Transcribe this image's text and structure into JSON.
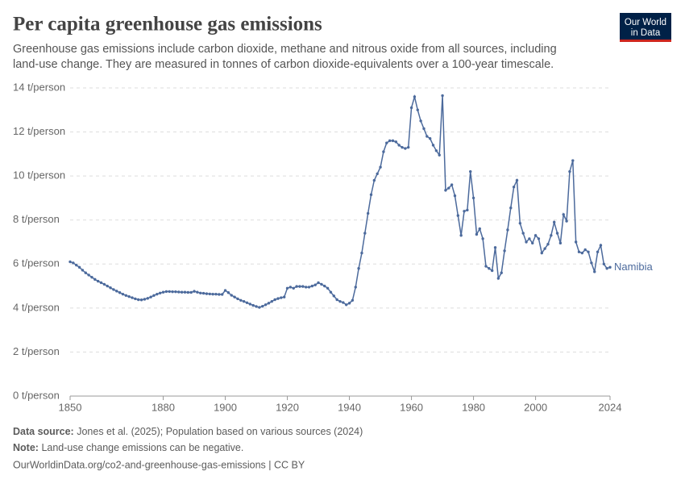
{
  "chart_data": {
    "type": "line",
    "title": "Per capita greenhouse gas emissions",
    "subtitle": [
      "Greenhouse gas emissions include carbon dioxide, methane and nitrous oxide from all sources, including",
      "land-use change. They are measured in tonnes of carbon dioxide-equivalents over a 100-year timescale."
    ],
    "logo": [
      "Our World",
      "in Data"
    ],
    "source_label": "Data source:",
    "source": "Jones et al. (2025); Population based on various sources (2024)",
    "note_label": "Note:",
    "note": "Land-use change emissions can be negative.",
    "url": "OurWorldinData.org/co2-and-greenhouse-gas-emissions | CC BY",
    "xlim": [
      1850,
      2024
    ],
    "xticks": [
      1850,
      1880,
      1900,
      1920,
      1940,
      1960,
      1980,
      2000,
      2024
    ],
    "ylim": [
      0,
      14
    ],
    "yticks": [
      {
        "value": 0,
        "label": "0 t/person"
      },
      {
        "value": 2,
        "label": "2 t/person"
      },
      {
        "value": 4,
        "label": "4 t/person"
      },
      {
        "value": 6,
        "label": "6 t/person"
      },
      {
        "value": 8,
        "label": "8 t/person"
      },
      {
        "value": 10,
        "label": "10 t/person"
      },
      {
        "value": 12,
        "label": "12 t/person"
      },
      {
        "value": 14,
        "label": "14 t/person"
      }
    ],
    "grid": true,
    "x": [
      1850,
      1851,
      1852,
      1853,
      1854,
      1855,
      1856,
      1857,
      1858,
      1859,
      1860,
      1861,
      1862,
      1863,
      1864,
      1865,
      1866,
      1867,
      1868,
      1869,
      1870,
      1871,
      1872,
      1873,
      1874,
      1875,
      1876,
      1877,
      1878,
      1879,
      1880,
      1881,
      1882,
      1883,
      1884,
      1885,
      1886,
      1887,
      1888,
      1889,
      1890,
      1891,
      1892,
      1893,
      1894,
      1895,
      1896,
      1897,
      1898,
      1899,
      1900,
      1901,
      1902,
      1903,
      1904,
      1905,
      1906,
      1907,
      1908,
      1909,
      1910,
      1911,
      1912,
      1913,
      1914,
      1915,
      1916,
      1917,
      1918,
      1919,
      1920,
      1921,
      1922,
      1923,
      1924,
      1925,
      1926,
      1927,
      1928,
      1929,
      1930,
      1931,
      1932,
      1933,
      1934,
      1935,
      1936,
      1937,
      1938,
      1939,
      1940,
      1941,
      1942,
      1943,
      1944,
      1945,
      1946,
      1947,
      1948,
      1949,
      1950,
      1951,
      1952,
      1953,
      1954,
      1955,
      1956,
      1957,
      1958,
      1959,
      1960,
      1961,
      1962,
      1963,
      1964,
      1965,
      1966,
      1967,
      1968,
      1969,
      1970,
      1971,
      1972,
      1973,
      1974,
      1975,
      1976,
      1977,
      1978,
      1979,
      1980,
      1981,
      1982,
      1983,
      1984,
      1985,
      1986,
      1987,
      1988,
      1989,
      1990,
      1991,
      1992,
      1993,
      1994,
      1995,
      1996,
      1997,
      1998,
      1999,
      2000,
      2001,
      2002,
      2003,
      2004,
      2005,
      2006,
      2007,
      2008,
      2009,
      2010,
      2011,
      2012,
      2013,
      2014,
      2015,
      2016,
      2017,
      2018,
      2019,
      2020,
      2021,
      2022,
      2023,
      2024
    ],
    "series": [
      {
        "name": "Namibia",
        "color": "#4c6a9c",
        "values": [
          6.1,
          6.05,
          5.95,
          5.85,
          5.72,
          5.6,
          5.5,
          5.4,
          5.3,
          5.22,
          5.15,
          5.08,
          5.0,
          4.92,
          4.84,
          4.77,
          4.7,
          4.63,
          4.57,
          4.52,
          4.47,
          4.42,
          4.38,
          4.37,
          4.4,
          4.44,
          4.5,
          4.57,
          4.63,
          4.68,
          4.72,
          4.75,
          4.75,
          4.74,
          4.74,
          4.73,
          4.72,
          4.72,
          4.71,
          4.71,
          4.76,
          4.72,
          4.68,
          4.67,
          4.65,
          4.64,
          4.63,
          4.63,
          4.62,
          4.62,
          4.8,
          4.7,
          4.58,
          4.5,
          4.42,
          4.35,
          4.3,
          4.24,
          4.18,
          4.12,
          4.07,
          4.03,
          4.08,
          4.15,
          4.22,
          4.3,
          4.38,
          4.43,
          4.47,
          4.5,
          4.9,
          4.95,
          4.9,
          4.98,
          4.98,
          4.98,
          4.95,
          4.95,
          5.0,
          5.05,
          5.15,
          5.08,
          5.0,
          4.9,
          4.72,
          4.55,
          4.38,
          4.3,
          4.25,
          4.15,
          4.22,
          4.35,
          4.95,
          5.8,
          6.5,
          7.4,
          8.3,
          9.15,
          9.8,
          10.1,
          10.4,
          11.1,
          11.5,
          11.6,
          11.6,
          11.55,
          11.4,
          11.3,
          11.25,
          11.3,
          13.1,
          13.6,
          13.0,
          12.5,
          12.15,
          11.8,
          11.7,
          11.4,
          11.15,
          10.95,
          13.65,
          9.35,
          9.45,
          9.6,
          9.1,
          8.2,
          7.3,
          8.4,
          8.45,
          10.2,
          9.0,
          7.35,
          7.6,
          7.15,
          5.9,
          5.8,
          5.7,
          6.75,
          5.35,
          5.6,
          6.6,
          7.55,
          8.55,
          9.5,
          9.8,
          7.85,
          7.4,
          7.0,
          7.15,
          6.95,
          7.3,
          7.15,
          6.5,
          6.7,
          6.9,
          7.3,
          7.9,
          7.4,
          6.95,
          8.25,
          7.95,
          10.2,
          10.7,
          7.0,
          6.55,
          6.5,
          6.65,
          6.55,
          6.05,
          5.65,
          6.55,
          6.85,
          6.0,
          5.8,
          5.85
        ]
      }
    ]
  }
}
